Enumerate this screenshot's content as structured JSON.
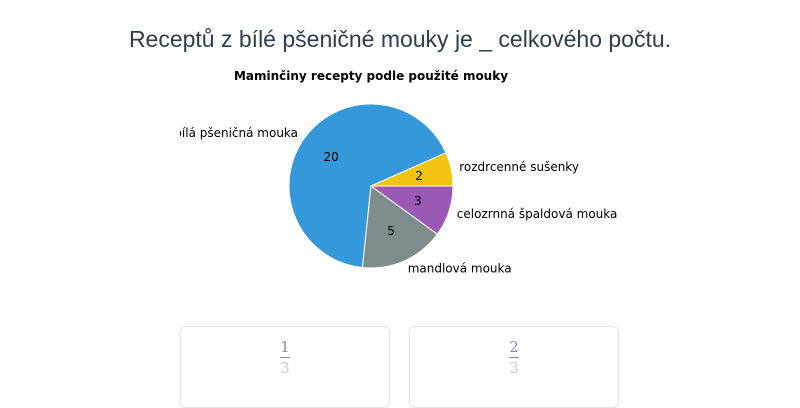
{
  "question": "Receptů z bílé pšeničné mouky je _ celkového počtu.",
  "chart_data": {
    "type": "pie",
    "title": "Maminčiny recepty podle použité mouky",
    "start_angle_deg": 0,
    "direction": "counterclockwise",
    "slices": [
      {
        "label": "rozdrcenné sušenky",
        "value": 2,
        "color": "#f1c40f"
      },
      {
        "label": "bílá pšeničná mouka",
        "value": 20,
        "color": "#3498db"
      },
      {
        "label": "mandlová mouka",
        "value": 5,
        "color": "#7f8c8d"
      },
      {
        "label": "celozrnná špaldová mouka",
        "value": 3,
        "color": "#9b59b6"
      }
    ]
  },
  "answers": [
    {
      "numerator": "1",
      "denominator": "3"
    },
    {
      "numerator": "2",
      "denominator": "3"
    }
  ]
}
